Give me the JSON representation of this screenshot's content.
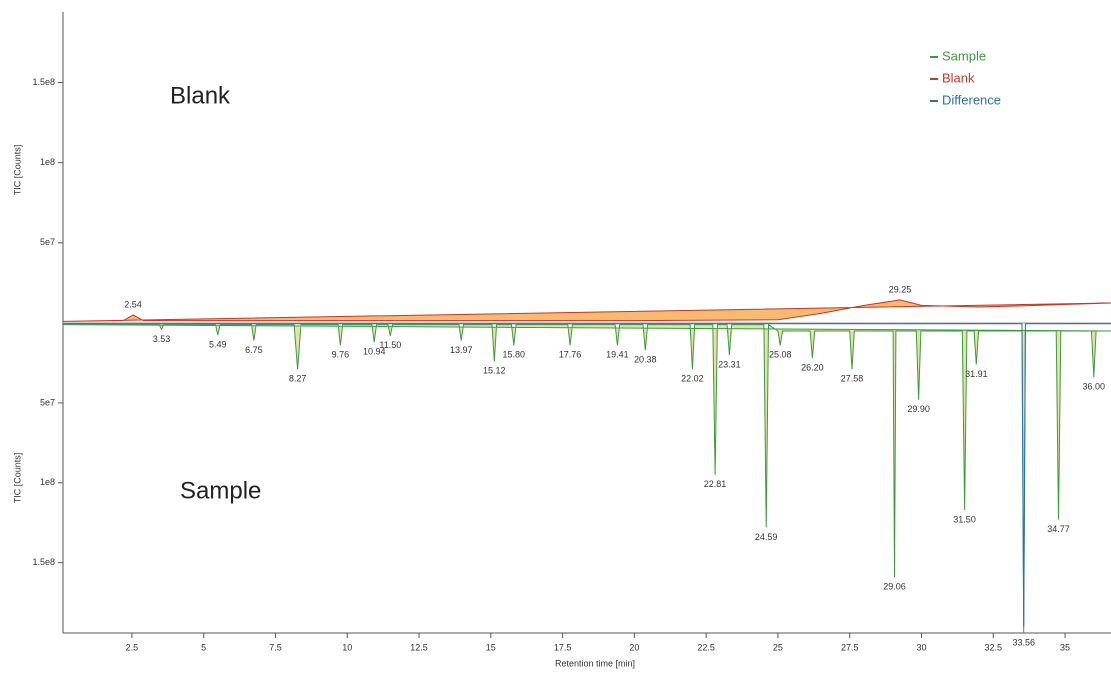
{
  "chart_data": {
    "type": "mirror-line",
    "x_label": "Retention time [min]",
    "y_label": "TIC [Counts]",
    "y2_label": "TIC [Counts]",
    "annotations": [
      "Blank",
      "Sample"
    ],
    "xlim": [
      0.1,
      36.6
    ],
    "xticks": [
      2.5,
      5,
      7.5,
      10,
      12.5,
      15,
      17.5,
      20,
      22.5,
      25,
      27.5,
      30,
      32.5,
      35
    ],
    "ylim": [
      0,
      194000000
    ],
    "yticks": [
      {
        "value": 50000000,
        "label": "5e7"
      },
      {
        "value": 100000000,
        "label": "1e8"
      },
      {
        "value": 150000000,
        "label": "1.5e8"
      }
    ],
    "y2lim": [
      0,
      194000000
    ],
    "y2ticks": [
      {
        "value": 50000000,
        "label": "5e7"
      },
      {
        "value": 100000000,
        "label": "1e8"
      },
      {
        "value": 150000000,
        "label": "1.5e8"
      }
    ],
    "legend": "top-right",
    "series": [
      {
        "name": "Sample",
        "color": "#3f9a3f",
        "fill": "#d9d88a",
        "axis": "y2",
        "x": [
          0.1,
          3.45,
          3.53,
          3.61,
          5.41,
          5.49,
          5.57,
          6.67,
          6.75,
          6.83,
          8.15,
          8.27,
          8.39,
          9.68,
          9.76,
          9.84,
          10.86,
          10.94,
          11.02,
          11.42,
          11.5,
          11.58,
          13.89,
          13.97,
          14.05,
          15.04,
          15.12,
          15.2,
          15.72,
          15.8,
          15.88,
          17.68,
          17.76,
          17.84,
          19.33,
          19.41,
          19.49,
          20.3,
          20.38,
          20.46,
          21.94,
          22.02,
          22.1,
          22.73,
          22.81,
          22.89,
          23.23,
          23.31,
          23.39,
          24.51,
          24.59,
          24.67,
          25.0,
          25.08,
          25.16,
          26.12,
          26.2,
          26.28,
          27.5,
          27.58,
          27.66,
          29.01,
          29.06,
          29.11,
          29.82,
          29.9,
          29.98,
          31.42,
          31.5,
          31.58,
          31.83,
          31.91,
          31.99,
          33.5,
          33.56,
          33.62,
          34.69,
          34.77,
          34.85,
          35.92,
          36.0,
          36.08,
          36.6
        ],
        "values": [
          1000000,
          1000000,
          4000000,
          1000000,
          1000000,
          7500000,
          1000000,
          1000000,
          11000000,
          1000000,
          1000000,
          29000000,
          1000000,
          1000000,
          14000000,
          1000000,
          1000000,
          12000000,
          1000000,
          1000000,
          8000000,
          1000000,
          1000000,
          11000000,
          1000000,
          1000000,
          24000000,
          1000000,
          1000000,
          14000000,
          1000000,
          1000000,
          14000000,
          1000000,
          1000000,
          14000000,
          1000000,
          1000000,
          17000000,
          1000000,
          1000000,
          29000000,
          1000000,
          1000000,
          95000000,
          1000000,
          1000000,
          20000000,
          1000000,
          1000000,
          128000000,
          1000000,
          5000000,
          14000000,
          5000000,
          5000000,
          22000000,
          5000000,
          5000000,
          29000000,
          5000000,
          5000000,
          159000000,
          5000000,
          5000000,
          48000000,
          5000000,
          5000000,
          117000000,
          5000000,
          5000000,
          26000000,
          5000000,
          5000000,
          194000000,
          5000000,
          5000000,
          123000000,
          5000000,
          5000000,
          34000000,
          5000000,
          5000000
        ]
      },
      {
        "name": "Blank",
        "color": "#c0392b",
        "fill": "#f5a142",
        "axis": "y",
        "x": [
          0.1,
          2.2,
          2.54,
          2.9,
          5,
          10,
          15,
          20,
          25,
          26.5,
          28,
          29.25,
          30,
          32,
          34,
          36.6
        ],
        "values": [
          1000000,
          1500000,
          5000000,
          1500000,
          1500000,
          1500000,
          1500000,
          1500000,
          2000000,
          6000000,
          11000000,
          14400000,
          11000000,
          10000000,
          11000000,
          12500000
        ]
      },
      {
        "name": "Difference",
        "color": "#2a6fb0",
        "fill": "none",
        "axis": "y2",
        "x": [
          0.1,
          33.5,
          33.56,
          33.62,
          36.6
        ],
        "values": [
          500000,
          500000,
          190000000,
          500000,
          500000
        ]
      }
    ],
    "peak_labels": [
      {
        "series": "Blank",
        "x": 2.54,
        "label": "2.54"
      },
      {
        "series": "Blank",
        "x": 29.25,
        "label": "29.25"
      },
      {
        "series": "Sample",
        "x": 3.53,
        "label": "3.53"
      },
      {
        "series": "Sample",
        "x": 5.49,
        "label": "5.49"
      },
      {
        "series": "Sample",
        "x": 6.75,
        "label": "6.75"
      },
      {
        "series": "Sample",
        "x": 8.27,
        "label": "8.27"
      },
      {
        "series": "Sample",
        "x": 9.76,
        "label": "9.76"
      },
      {
        "series": "Sample",
        "x": 10.94,
        "label": "10.94"
      },
      {
        "series": "Sample",
        "x": 11.5,
        "label": "11.50"
      },
      {
        "series": "Sample",
        "x": 13.97,
        "label": "13.97"
      },
      {
        "series": "Sample",
        "x": 15.12,
        "label": "15.12"
      },
      {
        "series": "Sample",
        "x": 15.8,
        "label": "15.80"
      },
      {
        "series": "Sample",
        "x": 17.76,
        "label": "17.76"
      },
      {
        "series": "Sample",
        "x": 19.41,
        "label": "19.41"
      },
      {
        "series": "Sample",
        "x": 20.38,
        "label": "20.38"
      },
      {
        "series": "Sample",
        "x": 22.02,
        "label": "22.02"
      },
      {
        "series": "Sample",
        "x": 22.81,
        "label": "22.81"
      },
      {
        "series": "Sample",
        "x": 23.31,
        "label": "23.31"
      },
      {
        "series": "Sample",
        "x": 24.59,
        "label": "24.59"
      },
      {
        "series": "Sample",
        "x": 25.08,
        "label": "25.08"
      },
      {
        "series": "Sample",
        "x": 26.2,
        "label": "26.20"
      },
      {
        "series": "Sample",
        "x": 27.58,
        "label": "27.58"
      },
      {
        "series": "Sample",
        "x": 29.06,
        "label": "29.06"
      },
      {
        "series": "Sample",
        "x": 29.9,
        "label": "29.90"
      },
      {
        "series": "Sample",
        "x": 31.5,
        "label": "31.50"
      },
      {
        "series": "Sample",
        "x": 31.91,
        "label": "31.91"
      },
      {
        "series": "Sample",
        "x": 33.56,
        "label": "33.56"
      },
      {
        "series": "Sample",
        "x": 34.77,
        "label": "34.77"
      },
      {
        "series": "Sample",
        "x": 36.0,
        "label": "36.00"
      }
    ]
  }
}
